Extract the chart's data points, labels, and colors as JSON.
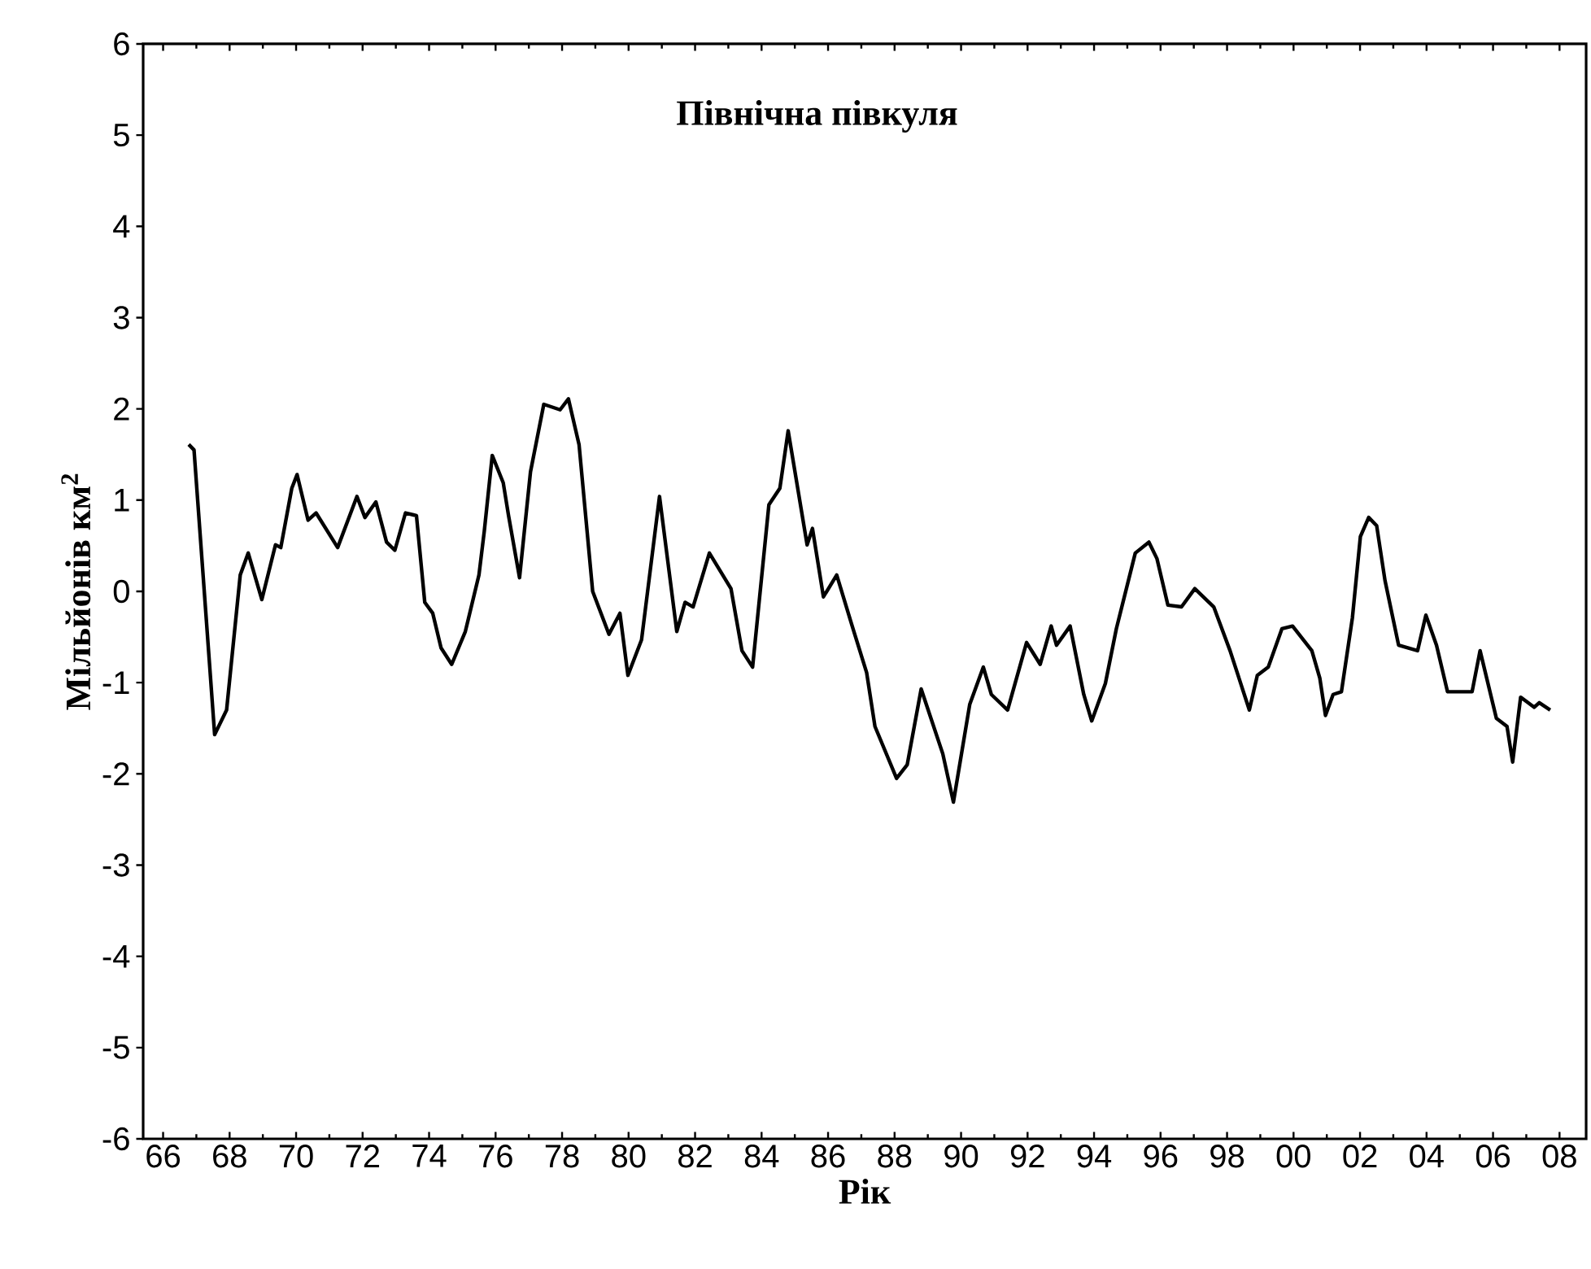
{
  "chart_data": {
    "type": "line",
    "title": "Північна півкуля",
    "xlabel": "Рік",
    "ylabel": "Мільйонів км$^{2}$",
    "xlim": [
      1965.4,
      2008.8
    ],
    "ylim": [
      -6,
      6
    ],
    "xticks": [
      {
        "value": 1966,
        "label": "66"
      },
      {
        "value": 1968,
        "label": "68"
      },
      {
        "value": 1970,
        "label": "70"
      },
      {
        "value": 1972,
        "label": "72"
      },
      {
        "value": 1974,
        "label": "74"
      },
      {
        "value": 1976,
        "label": "76"
      },
      {
        "value": 1978,
        "label": "78"
      },
      {
        "value": 1980,
        "label": "80"
      },
      {
        "value": 1982,
        "label": "82"
      },
      {
        "value": 1984,
        "label": "84"
      },
      {
        "value": 1986,
        "label": "86"
      },
      {
        "value": 1988,
        "label": "88"
      },
      {
        "value": 1990,
        "label": "90"
      },
      {
        "value": 1992,
        "label": "92"
      },
      {
        "value": 1994,
        "label": "94"
      },
      {
        "value": 1996,
        "label": "96"
      },
      {
        "value": 1998,
        "label": "98"
      },
      {
        "value": 2000,
        "label": "00"
      },
      {
        "value": 2002,
        "label": "02"
      },
      {
        "value": 2004,
        "label": "04"
      },
      {
        "value": 2006,
        "label": "06"
      },
      {
        "value": 2008,
        "label": "08"
      }
    ],
    "yticks": [
      -6,
      -5,
      -4,
      -3,
      -2,
      -1,
      0,
      1,
      2,
      3,
      4,
      5,
      6
    ],
    "marker": "none",
    "line_style": "solid",
    "series": [
      {
        "color": "#000000",
        "x": [
          1966.77,
          1966.93,
          1967.55,
          1967.91,
          1968.32,
          1968.56,
          1968.97,
          1969.38,
          1969.54,
          1969.87,
          1970.03,
          1970.36,
          1970.6,
          1971.25,
          1971.83,
          1972.07,
          1972.4,
          1972.72,
          1972.97,
          1973.29,
          1973.62,
          1973.87,
          1974.11,
          1974.36,
          1974.68,
          1975.09,
          1975.5,
          1975.66,
          1975.9,
          1976.23,
          1976.39,
          1976.72,
          1977.05,
          1977.45,
          1977.94,
          1978.19,
          1978.51,
          1978.92,
          1979.41,
          1979.74,
          1979.98,
          1980.39,
          1980.93,
          1981.45,
          1981.7,
          1981.94,
          1982.43,
          1983.08,
          1983.41,
          1983.73,
          1984.22,
          1984.55,
          1984.8,
          1985.37,
          1985.53,
          1985.86,
          1986.26,
          1986.75,
          1987.16,
          1987.41,
          1988.06,
          1988.38,
          1988.8,
          1989.45,
          1989.77,
          1990.26,
          1990.67,
          1990.91,
          1991.4,
          1991.97,
          1992.38,
          1992.71,
          1992.87,
          1993.28,
          1993.69,
          1993.93,
          1994.34,
          1994.67,
          1995.24,
          1995.65,
          1995.89,
          1996.22,
          1996.63,
          1997.03,
          1997.6,
          1998.09,
          1998.67,
          1998.91,
          1999.24,
          1999.65,
          1999.97,
          2000.55,
          2000.79,
          2000.96,
          2001.19,
          2001.44,
          2001.77,
          2002.01,
          2002.26,
          2002.5,
          2002.75,
          2003.16,
          2003.73,
          2003.98,
          2004.3,
          2004.63,
          2005.04,
          2005.37,
          2005.61,
          2006.1,
          2006.42,
          2006.59,
          2006.83,
          2007.24,
          2007.39,
          2007.72
        ],
        "values": [
          1.61,
          1.55,
          -1.57,
          -1.3,
          0.18,
          0.42,
          -0.09,
          0.51,
          0.48,
          1.13,
          1.28,
          0.78,
          0.86,
          0.48,
          1.04,
          0.81,
          0.98,
          0.54,
          0.45,
          0.86,
          0.83,
          -0.12,
          -0.24,
          -0.62,
          -0.8,
          -0.44,
          0.18,
          0.66,
          1.49,
          1.19,
          0.83,
          0.15,
          1.31,
          2.05,
          1.99,
          2.11,
          1.61,
          0.0,
          -0.47,
          -0.24,
          -0.92,
          -0.53,
          1.04,
          -0.44,
          -0.12,
          -0.17,
          0.42,
          0.03,
          -0.65,
          -0.83,
          0.95,
          1.13,
          1.76,
          0.51,
          0.69,
          -0.06,
          0.18,
          -0.41,
          -0.89,
          -1.48,
          -2.05,
          -1.9,
          -1.07,
          -1.78,
          -2.31,
          -1.24,
          -0.83,
          -1.13,
          -1.3,
          -0.56,
          -0.8,
          -0.38,
          -0.59,
          -0.38,
          -1.13,
          -1.42,
          -1.01,
          -0.41,
          0.42,
          0.54,
          0.36,
          -0.15,
          -0.17,
          0.03,
          -0.17,
          -0.65,
          -1.3,
          -0.92,
          -0.83,
          -0.41,
          -0.38,
          -0.65,
          -0.95,
          -1.36,
          -1.13,
          -1.1,
          -0.29,
          0.6,
          0.81,
          0.72,
          0.12,
          -0.59,
          -0.65,
          -0.26,
          -0.59,
          -1.1,
          -1.1,
          -1.1,
          -0.65,
          -1.39,
          -1.48,
          -1.87,
          -1.16,
          -1.27,
          -1.22,
          -1.3
        ]
      }
    ]
  }
}
